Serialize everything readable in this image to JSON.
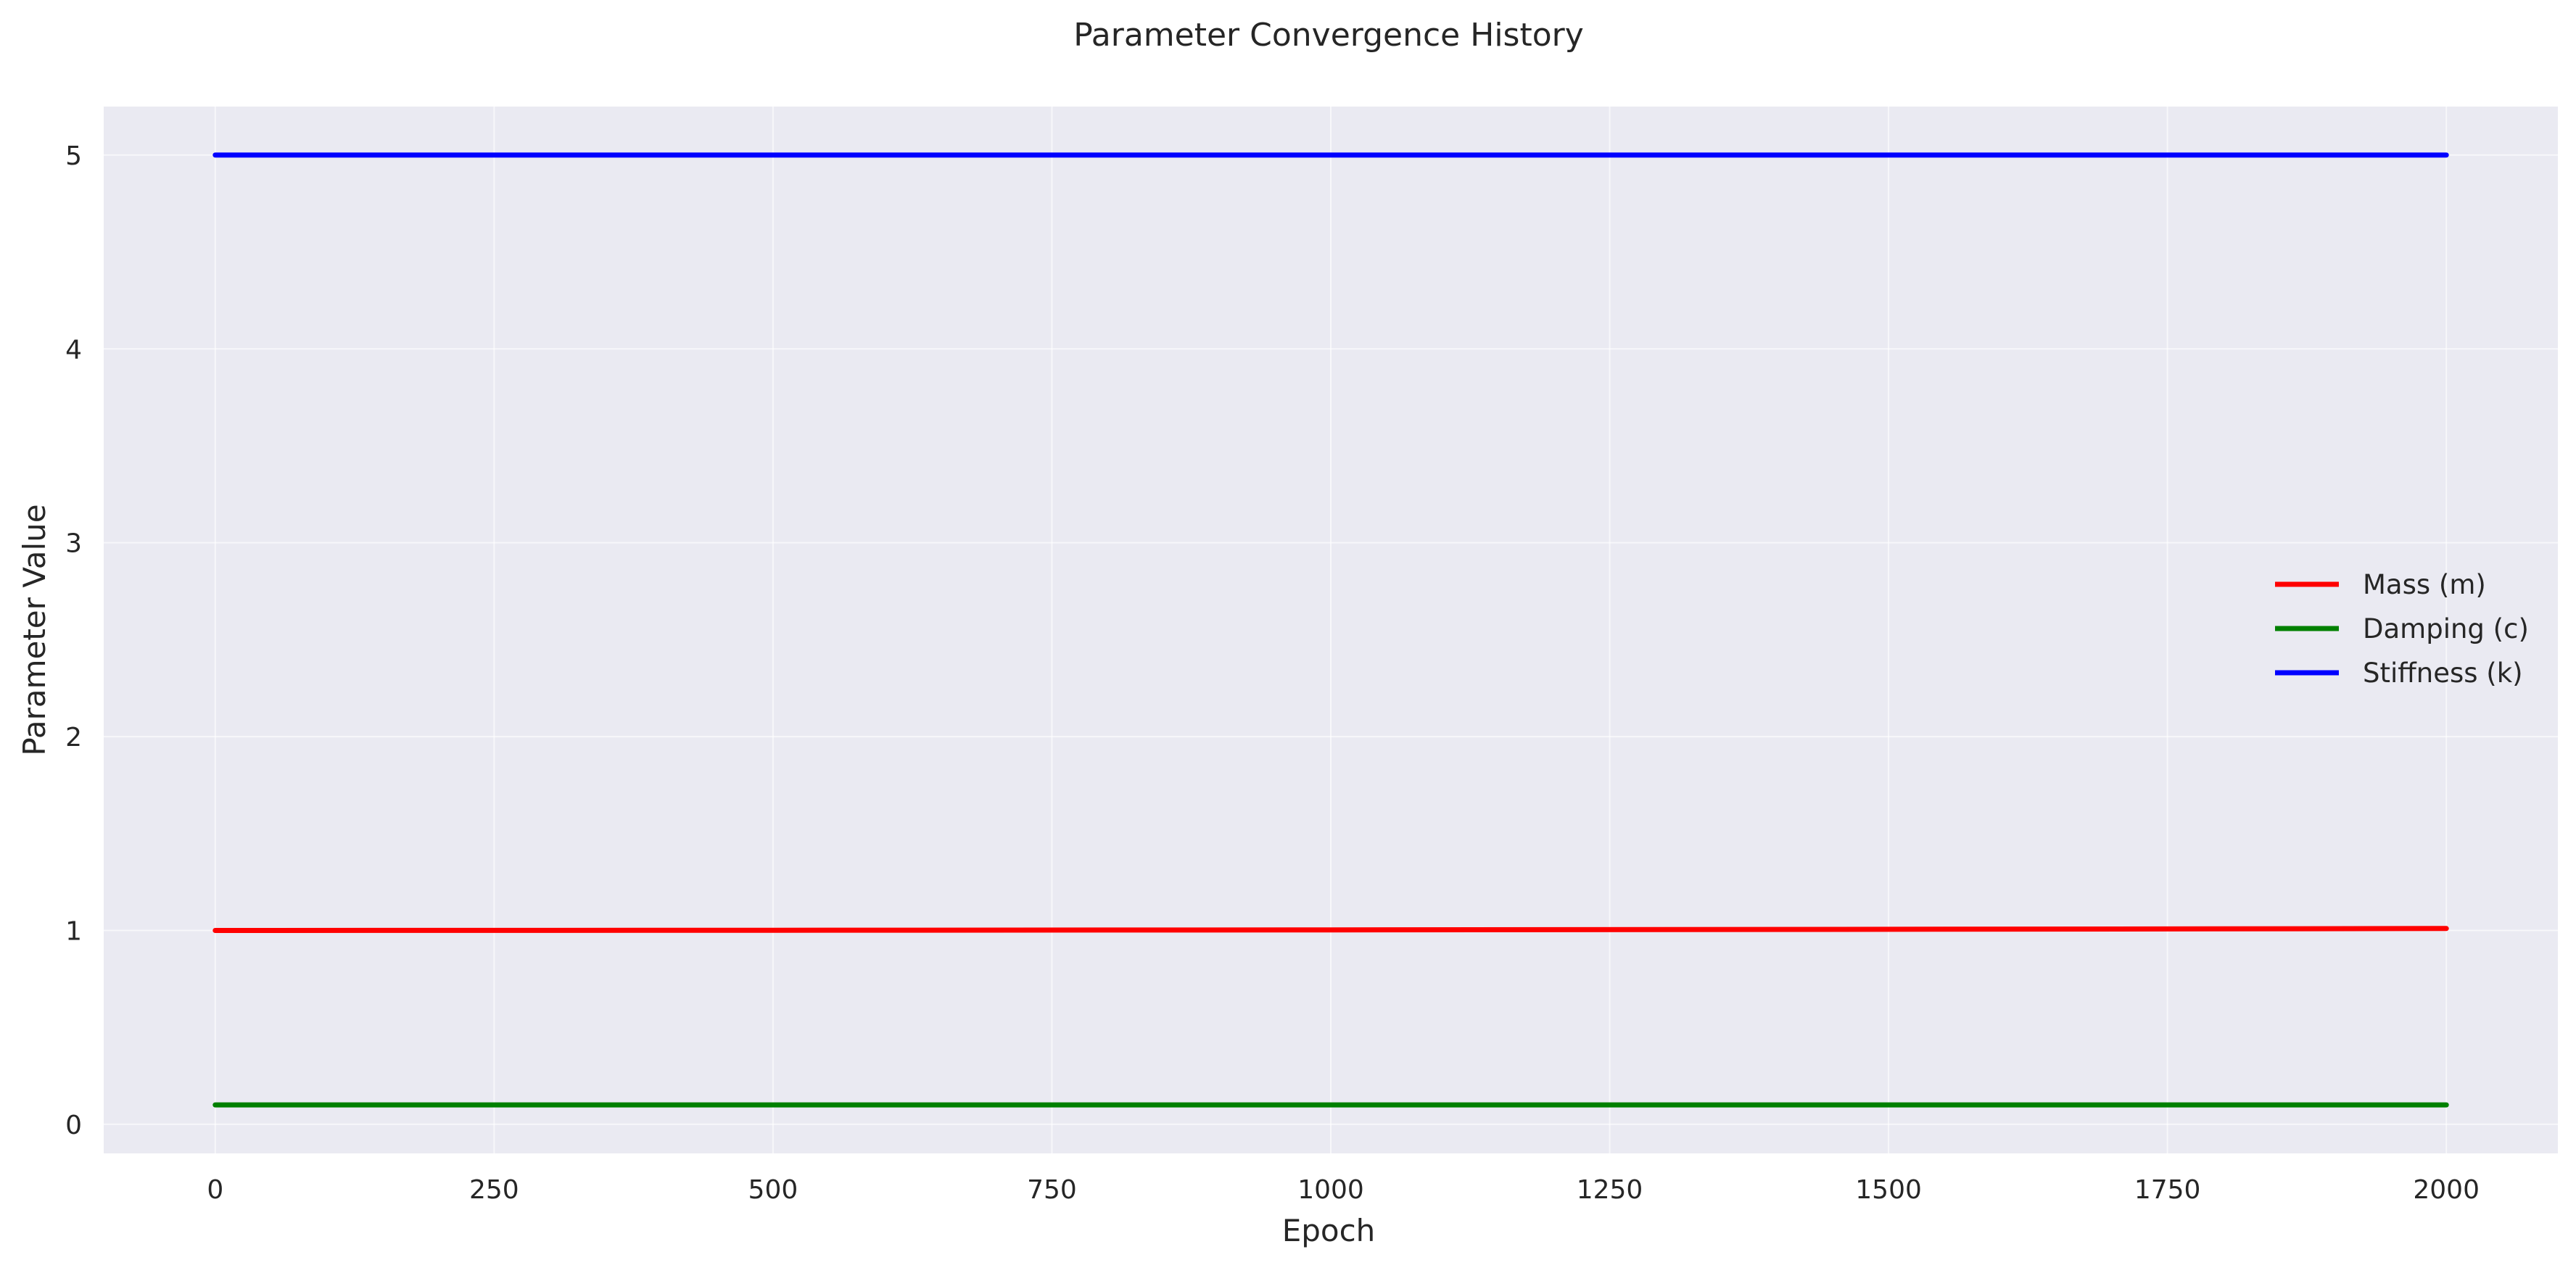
{
  "chart_data": {
    "type": "line",
    "title": "Parameter Convergence History",
    "xlabel": "Epoch",
    "ylabel": "Parameter Value",
    "xlim": [
      -100,
      2100
    ],
    "ylim": [
      -0.15,
      5.25
    ],
    "x_ticks": [
      0,
      250,
      500,
      750,
      1000,
      1250,
      1500,
      1750,
      2000
    ],
    "y_ticks": [
      0,
      1,
      2,
      3,
      4,
      5
    ],
    "grid": true,
    "legend_position": "center-right",
    "colors": {
      "plot_background": "#eaeaf2",
      "grid": "#ffffff"
    },
    "series": [
      {
        "name": "Mass (m)",
        "color": "#ff0000",
        "x": [
          0,
          500,
          1000,
          1500,
          2000
        ],
        "values": [
          1.0,
          1.001,
          1.003,
          1.006,
          1.01
        ]
      },
      {
        "name": "Damping (c)",
        "color": "#008000",
        "x": [
          0,
          500,
          1000,
          1500,
          2000
        ],
        "values": [
          0.1,
          0.1,
          0.1,
          0.1,
          0.1
        ]
      },
      {
        "name": "Stiffness (k)",
        "color": "#0000ff",
        "x": [
          0,
          500,
          1000,
          1500,
          2000
        ],
        "values": [
          5.0,
          5.0,
          5.0,
          5.0,
          5.0
        ]
      }
    ]
  }
}
